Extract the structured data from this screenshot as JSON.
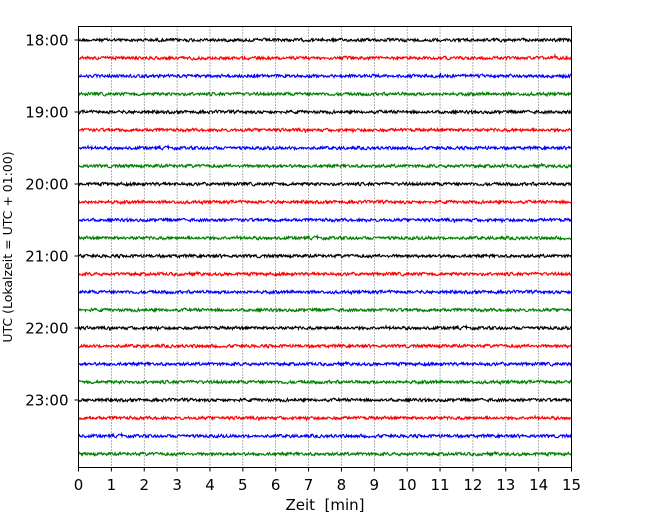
{
  "chart_data": {
    "type": "line",
    "title": "",
    "xlabel": "Zeit  [min]",
    "ylabel": "UTC (Lokalzeit = UTC + 01:00)",
    "xlim": [
      0,
      15
    ],
    "x_ticks": [
      "0",
      "1",
      "2",
      "3",
      "4",
      "5",
      "6",
      "7",
      "8",
      "9",
      "10",
      "11",
      "12",
      "13",
      "14",
      "15"
    ],
    "y_tick_labels": [
      "18:00",
      "19:00",
      "20:00",
      "21:00",
      "22:00",
      "23:00"
    ],
    "grid": {
      "x": true,
      "style": "dotted"
    },
    "trace_interval_min": 15,
    "trace_count": 24,
    "trace_colors": [
      "#000000",
      "#ff0000",
      "#0000ff",
      "#008000"
    ],
    "traces": [
      {
        "time": "18:00",
        "color": "#000000"
      },
      {
        "time": "18:15",
        "color": "#ff0000"
      },
      {
        "time": "18:30",
        "color": "#0000ff"
      },
      {
        "time": "18:45",
        "color": "#008000"
      },
      {
        "time": "19:00",
        "color": "#000000"
      },
      {
        "time": "19:15",
        "color": "#ff0000"
      },
      {
        "time": "19:30",
        "color": "#0000ff"
      },
      {
        "time": "19:45",
        "color": "#008000"
      },
      {
        "time": "20:00",
        "color": "#000000"
      },
      {
        "time": "20:15",
        "color": "#ff0000"
      },
      {
        "time": "20:30",
        "color": "#0000ff"
      },
      {
        "time": "20:45",
        "color": "#008000"
      },
      {
        "time": "21:00",
        "color": "#000000"
      },
      {
        "time": "21:15",
        "color": "#ff0000"
      },
      {
        "time": "21:30",
        "color": "#0000ff"
      },
      {
        "time": "21:45",
        "color": "#008000"
      },
      {
        "time": "22:00",
        "color": "#000000"
      },
      {
        "time": "22:15",
        "color": "#ff0000"
      },
      {
        "time": "22:30",
        "color": "#0000ff"
      },
      {
        "time": "22:45",
        "color": "#008000"
      },
      {
        "time": "23:00",
        "color": "#000000"
      },
      {
        "time": "23:15",
        "color": "#ff0000"
      },
      {
        "time": "23:30",
        "color": "#0000ff"
      },
      {
        "time": "23:45",
        "color": "#008000"
      }
    ]
  }
}
